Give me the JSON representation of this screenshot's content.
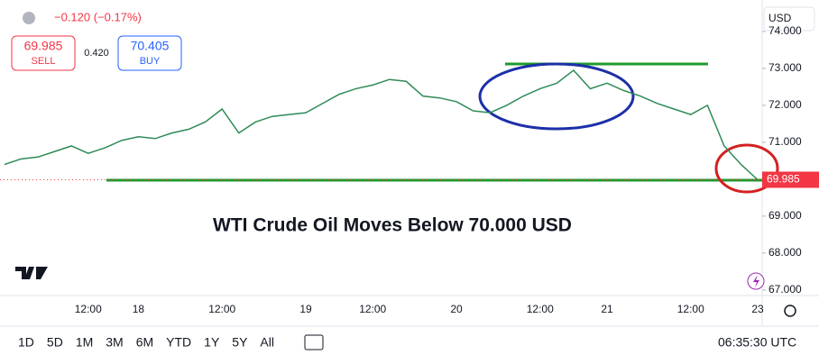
{
  "header": {
    "change": "−0.120 (−0.17%)",
    "sell_price": "69.985",
    "sell_label": "SELL",
    "spread": "0.420",
    "buy_price": "70.405",
    "buy_label": "BUY",
    "currency": "USD"
  },
  "toolbar": {
    "ranges": [
      "1D",
      "5D",
      "1M",
      "3M",
      "6M",
      "YTD",
      "1Y",
      "5Y",
      "All"
    ],
    "clock": "06:35:30 UTC"
  },
  "chart_data": {
    "type": "line",
    "annotation": "WTI Crude Oil Moves Below 70.000 USD",
    "categories": [
      null,
      null,
      null,
      null,
      null,
      "12:00",
      null,
      null,
      "18",
      null,
      null,
      null,
      null,
      "12:00",
      null,
      null,
      null,
      null,
      "19",
      null,
      null,
      null,
      "12:00",
      null,
      null,
      null,
      null,
      "20",
      null,
      null,
      null,
      null,
      "12:00",
      null,
      null,
      null,
      "21",
      null,
      null,
      null,
      null,
      "12:00",
      null,
      null,
      null,
      "23"
    ],
    "series": [
      {
        "name": "WTI",
        "color": "#2e8b57",
        "values": [
          70.4,
          70.55,
          70.6,
          70.75,
          70.9,
          70.7,
          70.85,
          71.05,
          71.15,
          71.1,
          71.25,
          71.35,
          71.55,
          71.9,
          71.25,
          71.55,
          71.7,
          71.75,
          71.8,
          72.05,
          72.3,
          72.45,
          72.55,
          72.7,
          72.65,
          72.25,
          72.2,
          72.1,
          71.85,
          71.8,
          72.0,
          72.25,
          72.45,
          72.6,
          72.95,
          72.45,
          72.6,
          72.4,
          72.25,
          72.05,
          71.9,
          71.75,
          72.0,
          70.9,
          70.4,
          69.985
        ]
      }
    ],
    "ylim": [
      66.85,
      74.12
    ],
    "yticks": [
      {
        "value": 67,
        "label": "67.000"
      },
      {
        "value": 68,
        "label": "68.000"
      },
      {
        "value": 69,
        "label": "69.000"
      },
      {
        "value": 71,
        "label": "71.000"
      },
      {
        "value": 72,
        "label": "72.000"
      },
      {
        "value": 73,
        "label": "73.000"
      },
      {
        "value": 74,
        "label": "74.000"
      }
    ],
    "grid": false
  }
}
